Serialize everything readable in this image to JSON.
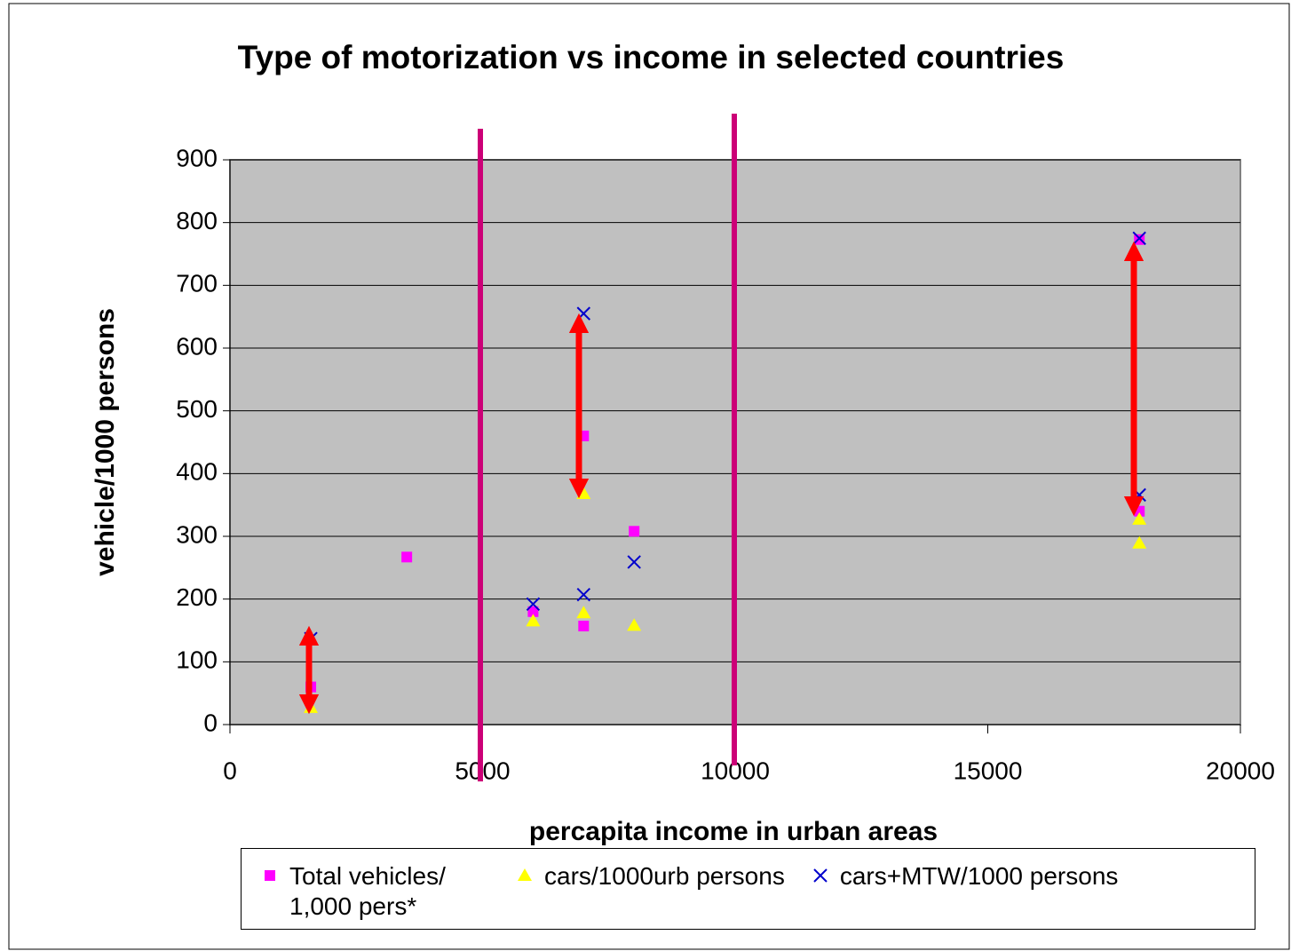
{
  "chart_data": {
    "type": "scatter",
    "title": "Type of motorization vs income in selected countries",
    "xlabel": "percapita income in urban areas",
    "ylabel": "vehicle/1000 persons",
    "xlim": [
      0,
      20000
    ],
    "xticks": [
      0,
      5000,
      10000,
      15000,
      20000
    ],
    "ylim": [
      0,
      900
    ],
    "yticks": [
      0,
      100,
      200,
      300,
      400,
      500,
      600,
      700,
      800,
      900
    ],
    "grid": true,
    "series": [
      {
        "name": "Total vehicles/ 1,000 pers*",
        "color": "#ff00ff",
        "marker": "square",
        "x": [
          1600,
          3500,
          6000,
          7000,
          7000,
          8000,
          18000,
          18000
        ],
        "values": [
          60,
          267,
          180,
          157,
          460,
          308,
          340,
          773
        ]
      },
      {
        "name": "cars/1000urb persons",
        "color": "#ffff00",
        "marker": "triangle",
        "x": [
          1600,
          6000,
          7000,
          7000,
          8000,
          18000,
          18000
        ],
        "values": [
          27,
          165,
          178,
          368,
          158,
          327,
          289
        ]
      },
      {
        "name": "cars+MTW/1000 persons",
        "color": "#0000cc",
        "marker": "x",
        "x": [
          1600,
          6000,
          7000,
          7000,
          8000,
          18000,
          18000
        ],
        "values": [
          137,
          192,
          207,
          655,
          259,
          366,
          775
        ]
      }
    ]
  }
}
